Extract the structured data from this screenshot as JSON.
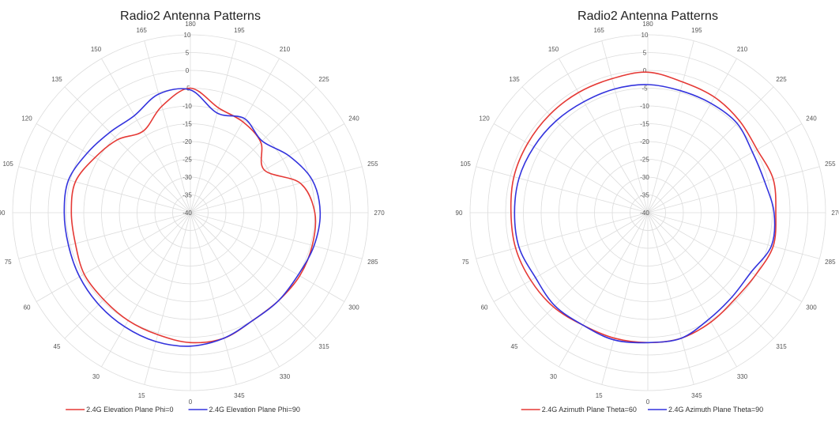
{
  "colors": {
    "background": "#ffffff",
    "grid": "#dcdcdc",
    "series_1": "#e53935",
    "series_2": "#3333dd"
  },
  "chart_data": [
    {
      "type": "polar-line",
      "title": "Radio2 Antenna Patterns",
      "angular_axis": {
        "direction": "counterclockwise",
        "zero_position": "bottom",
        "tick_labels": [
          "0",
          "15",
          "30",
          "45",
          "60",
          "75",
          "90",
          "105",
          "120",
          "135",
          "150",
          "165",
          "180",
          "195",
          "210",
          "225",
          "240",
          "255",
          "270",
          "285",
          "300",
          "315",
          "330",
          "345"
        ]
      },
      "radial_axis": {
        "range": [
          -40,
          10
        ],
        "tick_labels": [
          "-40",
          "-35",
          "-30",
          "-25",
          "-20",
          "-15",
          "-10",
          "-5",
          "0",
          "5",
          "10"
        ]
      },
      "grid": true,
      "legend_position": "bottom",
      "angles": [
        0,
        15,
        30,
        45,
        60,
        75,
        90,
        105,
        120,
        135,
        150,
        165,
        180,
        195,
        210,
        225,
        240,
        255,
        270,
        285,
        300,
        315,
        330,
        345
      ],
      "series": [
        {
          "name": "2.4G Elevation Plane Phi=0",
          "color": "#e53935",
          "values": [
            -3.5,
            -4.5,
            -5.0,
            -5.5,
            -5.5,
            -6.5,
            -6.5,
            -6.5,
            -9.0,
            -11.0,
            -13.5,
            -9.0,
            -5.0,
            -9.5,
            -10.5,
            -12.0,
            -16.0,
            -8.0,
            -5.0,
            -4.5,
            -4.5,
            -5.0,
            -5.0,
            -3.5
          ]
        },
        {
          "name": "2.4G Elevation Plane Phi=90",
          "color": "#3333dd",
          "values": [
            -2.5,
            -2.5,
            -3.0,
            -3.5,
            -4.0,
            -4.5,
            -4.5,
            -4.5,
            -6.5,
            -8.0,
            -8.5,
            -5.5,
            -5.5,
            -11.0,
            -9.5,
            -11.5,
            -8.0,
            -4.5,
            -3.5,
            -4.0,
            -5.0,
            -5.0,
            -5.0,
            -3.5
          ]
        }
      ]
    },
    {
      "type": "polar-line",
      "title": "Radio2 Antenna Patterns",
      "angular_axis": {
        "direction": "counterclockwise",
        "zero_position": "bottom",
        "tick_labels": [
          "0",
          "15",
          "30",
          "45",
          "60",
          "75",
          "90",
          "105",
          "120",
          "135",
          "150",
          "165",
          "180",
          "195",
          "210",
          "225",
          "240",
          "255",
          "270",
          "285",
          "300",
          "315",
          "330",
          "345"
        ]
      },
      "radial_axis": {
        "range": [
          -40,
          10
        ],
        "tick_labels": [
          "-40",
          "-35",
          "-30",
          "-25",
          "-20",
          "-15",
          "-10",
          "-5",
          "0",
          "5",
          "10"
        ]
      },
      "grid": true,
      "legend_position": "bottom",
      "angles": [
        0,
        15,
        30,
        45,
        60,
        75,
        90,
        105,
        120,
        135,
        150,
        165,
        180,
        195,
        210,
        225,
        240,
        255,
        270,
        285,
        300,
        315,
        330,
        345
      ],
      "series": [
        {
          "name": "2.4G Azimuth Plane Theta=60",
          "color": "#e53935",
          "values": [
            -3.5,
            -3.5,
            -3.5,
            -2.5,
            -2.0,
            -1.5,
            -1.5,
            -1.0,
            -1.0,
            -1.0,
            -1.0,
            -1.0,
            -0.5,
            -2.0,
            -2.5,
            -3.5,
            -4.5,
            -3.5,
            -4.0,
            -3.5,
            -5.0,
            -5.5,
            -4.5,
            -3.5
          ]
        },
        {
          "name": "2.4G Azimuth Plane Theta=90",
          "color": "#3333dd",
          "values": [
            -3.5,
            -3.0,
            -3.5,
            -3.0,
            -3.5,
            -2.5,
            -2.5,
            -2.5,
            -3.0,
            -3.5,
            -4.0,
            -4.0,
            -4.0,
            -4.5,
            -4.5,
            -4.5,
            -6.0,
            -6.0,
            -4.5,
            -4.0,
            -6.5,
            -6.5,
            -5.5,
            -3.5
          ]
        }
      ]
    }
  ]
}
